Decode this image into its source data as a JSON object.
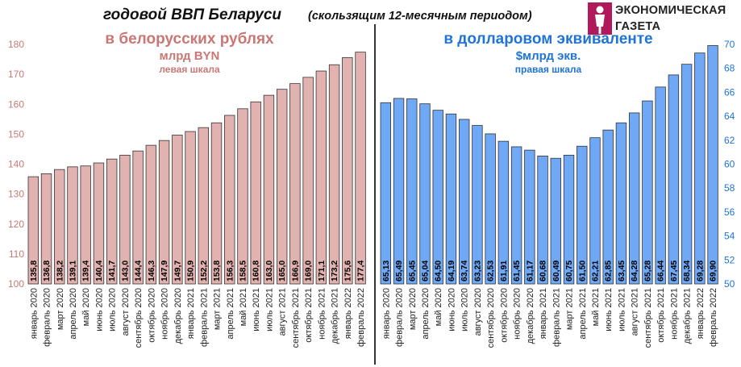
{
  "title": {
    "main": "годовой ВВП Беларуси",
    "sub": "(скользящим 12-месячным периодом)"
  },
  "logo": {
    "line1": "ЭКОНОМИЧЕСКАЯ",
    "line2": "ГАЗЕТА",
    "accent_color": "#b0195b"
  },
  "chart_data": [
    {
      "type": "bar",
      "title": "в белорусских рублях",
      "unit_label": "млрд BYN",
      "scale_label": "левая шкала",
      "axis": "left",
      "ylim": [
        100,
        180
      ],
      "yticks": [
        100,
        110,
        120,
        130,
        140,
        150,
        160,
        170,
        180
      ],
      "color": "#e2b2b0",
      "text_color": "#c97873",
      "categories": [
        "январь 2020",
        "февраль 2020",
        "март 2020",
        "апрель 2020",
        "май 2020",
        "июнь 2020",
        "июль 2020",
        "август 2020",
        "сентябрь 2020",
        "октябрь 2020",
        "ноябрь 2020",
        "декабрь 2020",
        "январь 2021",
        "февраль 2021",
        "март 2021",
        "апрель 2021",
        "май 2021",
        "июнь 2021",
        "июль 2021",
        "август 2021",
        "сентябрь 2021",
        "октябрь 2021",
        "ноябрь 2021",
        "декабрь 2021",
        "январь 2022",
        "февраль 2022"
      ],
      "values": [
        135.8,
        136.8,
        138.2,
        139.1,
        139.4,
        140.4,
        141.7,
        143.0,
        144.4,
        146.3,
        147.9,
        149.7,
        150.9,
        152.2,
        153.8,
        156.3,
        158.5,
        160.8,
        163.0,
        165.0,
        166.9,
        169.0,
        171.1,
        173.2,
        175.6,
        177.4
      ],
      "value_labels": [
        "135,8",
        "136,8",
        "138,2",
        "139,1",
        "139,4",
        "140,4",
        "141,7",
        "143,0",
        "144,4",
        "146,3",
        "147,9",
        "149,7",
        "150,9",
        "152,2",
        "153,8",
        "156,3",
        "158,5",
        "160,8",
        "163,0",
        "165,0",
        "166,9",
        "169,0",
        "171,1",
        "173,2",
        "175,6",
        "177,4"
      ]
    },
    {
      "type": "bar",
      "title": "в долларовом эквиваленте",
      "unit_label": "$млрд экв.",
      "scale_label": "правая шкала",
      "axis": "right",
      "ylim": [
        50,
        70
      ],
      "yticks": [
        50,
        52,
        54,
        56,
        58,
        60,
        62,
        64,
        66,
        68,
        70
      ],
      "color": "#6fa8f4",
      "text_color": "#1f74d6",
      "categories": [
        "январь 2020",
        "февраль 2020",
        "март 2020",
        "апрель 2020",
        "май 2020",
        "июнь 2020",
        "июль 2020",
        "август 2020",
        "сентябрь 2020",
        "октябрь 2020",
        "ноябрь 2020",
        "декабрь 2020",
        "январь 2021",
        "февраль 2021",
        "март 2021",
        "апрель 2021",
        "май 2021",
        "июнь 2021",
        "июль 2021",
        "август 2021",
        "сентябрь 2021",
        "октябрь 2021",
        "ноябрь 2021",
        "декабрь 2021",
        "январь 2022",
        "февраль 2022"
      ],
      "values": [
        65.13,
        65.49,
        65.45,
        65.04,
        64.5,
        64.19,
        63.74,
        63.23,
        62.53,
        61.91,
        61.45,
        61.17,
        60.68,
        60.49,
        60.75,
        61.5,
        62.21,
        62.85,
        63.45,
        64.28,
        65.28,
        66.44,
        67.45,
        68.34,
        69.28,
        69.9
      ],
      "value_labels": [
        "65,13",
        "65,49",
        "65,45",
        "65,04",
        "64,50",
        "64,19",
        "63,74",
        "63,23",
        "62,53",
        "61,91",
        "61,45",
        "61,17",
        "60,68",
        "60,49",
        "60,75",
        "61,50",
        "62,21",
        "62,85",
        "63,45",
        "64,28",
        "65,28",
        "66,44",
        "67,45",
        "68,34",
        "69,28",
        "69,90"
      ]
    }
  ]
}
